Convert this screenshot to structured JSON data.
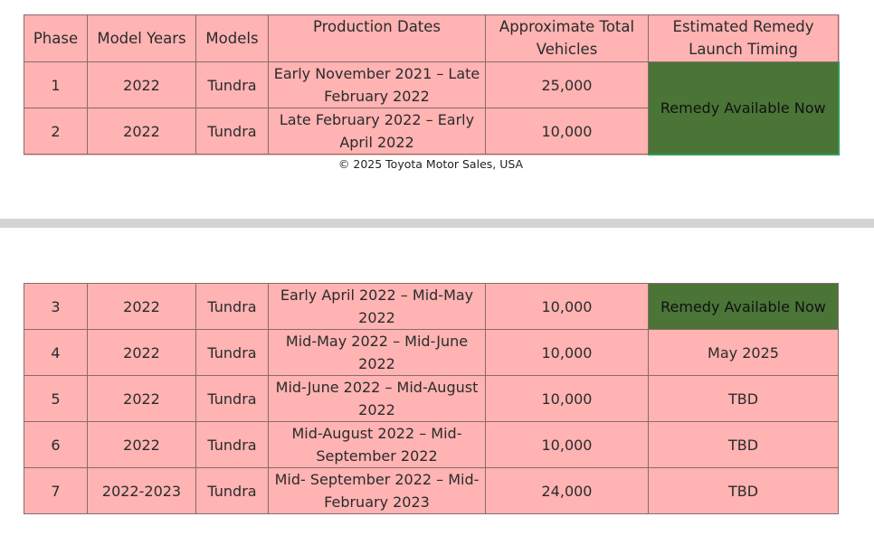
{
  "headers": {
    "phase": "Phase",
    "model_years": "Model Years",
    "models": "Models",
    "production_dates": "Production Dates",
    "vehicles": "Approximate Total Vehicles",
    "timing": "Estimated Remedy Launch Timing"
  },
  "top_rows": [
    {
      "phase": "1",
      "years": "2022",
      "model": "Tundra",
      "dates": "Early November 2021 – Late February 2022",
      "vehicles": "25,000"
    },
    {
      "phase": "2",
      "years": "2022",
      "model": "Tundra",
      "dates": "Late February 2022 – Early April 2022",
      "vehicles": "10,000"
    }
  ],
  "top_timing": "Remedy Available Now",
  "copyright": "© 2025 Toyota Motor Sales, USA",
  "bottom_rows": [
    {
      "phase": "3",
      "years": "2022",
      "model": "Tundra",
      "dates": "Early April 2022 – Mid-May 2022",
      "vehicles": "10,000",
      "timing": "Remedy Available Now"
    },
    {
      "phase": "4",
      "years": "2022",
      "model": "Tundra",
      "dates": "Mid-May 2022 – Mid-June 2022",
      "vehicles": "10,000",
      "timing": "May 2025"
    },
    {
      "phase": "5",
      "years": "2022",
      "model": "Tundra",
      "dates": "Mid-June 2022 – Mid-August 2022",
      "vehicles": "10,000",
      "timing": "TBD"
    },
    {
      "phase": "6",
      "years": "2022",
      "model": "Tundra",
      "dates": "Mid-August 2022 – Mid-September 2022",
      "vehicles": "10,000",
      "timing": "TBD"
    },
    {
      "phase": "7",
      "years": "2022-2023",
      "model": "Tundra",
      "dates": "Mid- September 2022 – Mid-February 2023",
      "vehicles": "24,000",
      "timing": "TBD"
    }
  ],
  "colors": {
    "cell_background": "#ffb3b3",
    "remedy_available_background": "#4a7536",
    "divider": "#d4d4d4"
  }
}
